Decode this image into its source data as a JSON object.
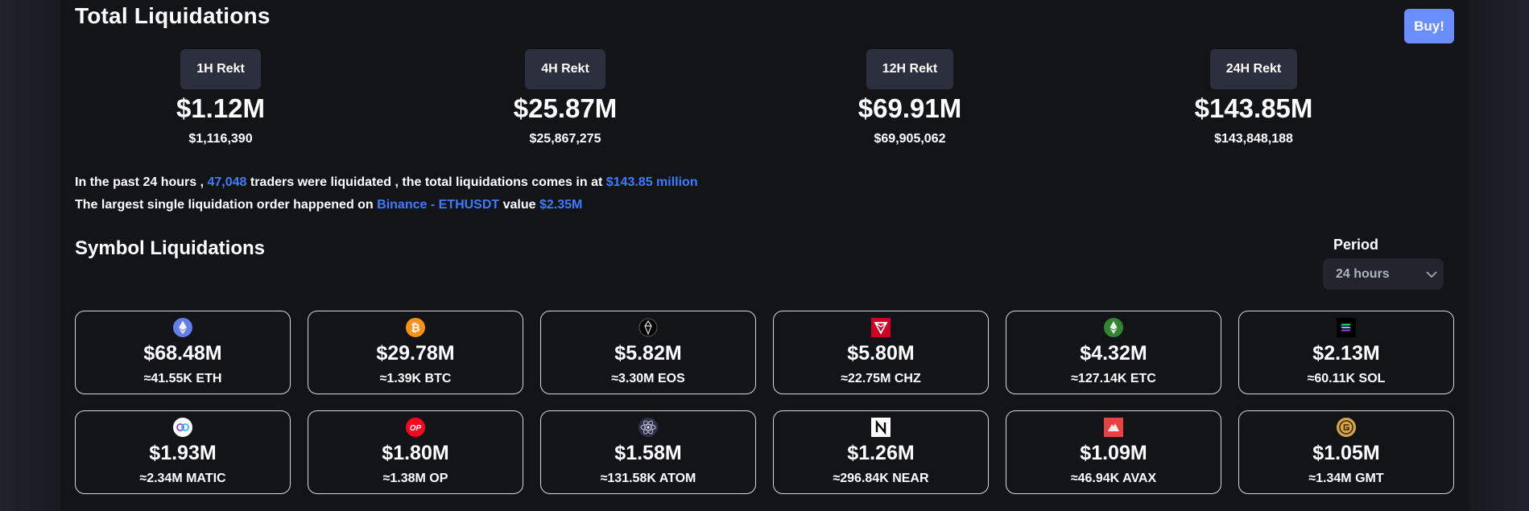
{
  "header": {
    "title": "Total Liquidations",
    "buy_label": "Buy!"
  },
  "rekt": [
    {
      "label": "1H Rekt",
      "value": "$1.12M",
      "exact": "$1,116,390"
    },
    {
      "label": "4H Rekt",
      "value": "$25.87M",
      "exact": "$25,867,275"
    },
    {
      "label": "12H Rekt",
      "value": "$69.91M",
      "exact": "$69,905,062"
    },
    {
      "label": "24H Rekt",
      "value": "$143.85M",
      "exact": "$143,848,188"
    }
  ],
  "summary": {
    "line1_a": "In the past 24 hours ,",
    "traders": "47,048",
    "line1_b": "traders were liquidated , the total liquidations comes in at",
    "total": "$143.85 million",
    "line2_a": "The largest single liquidation order happened on",
    "exchange": "Binance - ETHUSDT",
    "line2_b": "value",
    "order_value": "$2.35M"
  },
  "symbols": {
    "title": "Symbol Liquidations",
    "period_label": "Period",
    "period_value": "24 hours",
    "cards": [
      {
        "icon": "eth-icon",
        "value": "$68.48M",
        "amount": "≈41.55K ETH"
      },
      {
        "icon": "btc-icon",
        "value": "$29.78M",
        "amount": "≈1.39K BTC"
      },
      {
        "icon": "eos-icon",
        "value": "$5.82M",
        "amount": "≈3.30M EOS"
      },
      {
        "icon": "chz-icon",
        "value": "$5.80M",
        "amount": "≈22.75M CHZ"
      },
      {
        "icon": "etc-icon",
        "value": "$4.32M",
        "amount": "≈127.14K ETC"
      },
      {
        "icon": "sol-icon",
        "value": "$2.13M",
        "amount": "≈60.11K SOL"
      },
      {
        "icon": "matic-icon",
        "value": "$1.93M",
        "amount": "≈2.34M MATIC"
      },
      {
        "icon": "op-icon",
        "value": "$1.80M",
        "amount": "≈1.38M OP"
      },
      {
        "icon": "atom-icon",
        "value": "$1.58M",
        "amount": "≈131.58K ATOM"
      },
      {
        "icon": "near-icon",
        "value": "$1.26M",
        "amount": "≈296.84K NEAR"
      },
      {
        "icon": "avax-icon",
        "value": "$1.09M",
        "amount": "≈46.94K AVAX"
      },
      {
        "icon": "gmt-icon",
        "value": "$1.05M",
        "amount": "≈1.34M GMT"
      }
    ]
  },
  "colors": {
    "accent": "#3d7bff",
    "buy": "#6a8dff",
    "badge": "#2c2f3d",
    "panel": "#131418"
  }
}
